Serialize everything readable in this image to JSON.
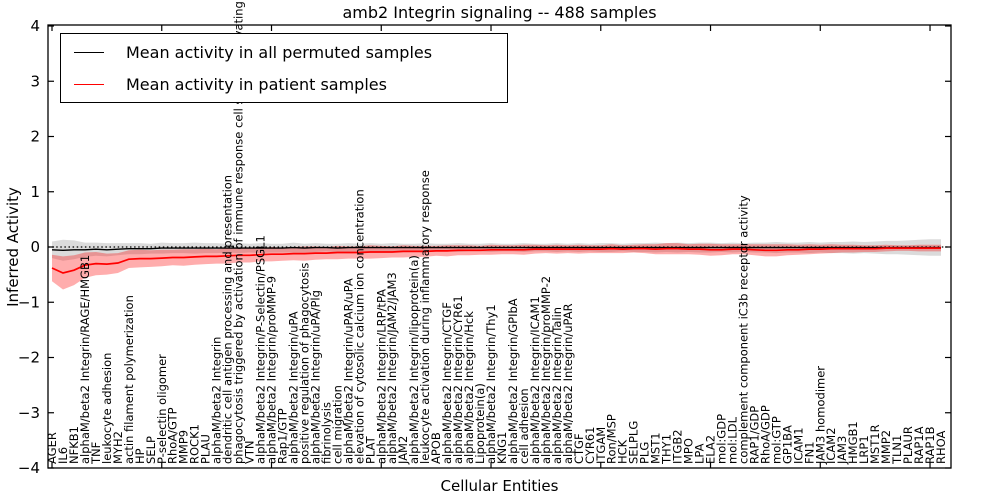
{
  "figure": {
    "title": "amb2 Integrin signaling -- 488 samples",
    "xlabel": "Cellular Entities",
    "ylabel": "Inferred Activity"
  },
  "legend": {
    "items": [
      {
        "label": "Mean activity in all permuted samples",
        "color": "#000000"
      },
      {
        "label": "Mean activity in patient samples",
        "color": "#ff0000"
      }
    ]
  },
  "chart_data": {
    "type": "line",
    "title": "amb2 Integrin signaling -- 488 samples",
    "xlabel": "Cellular Entities",
    "ylabel": "Inferred Activity",
    "ylim": [
      -4,
      4
    ],
    "yticks": [
      -4,
      -3,
      -2,
      -1,
      0,
      1,
      2,
      3,
      4
    ],
    "ytick_labels": [
      "−4",
      "−3",
      "−2",
      "−1",
      "0",
      "1",
      "2",
      "3",
      "4"
    ],
    "grid": false,
    "legend_position": "upper left",
    "zero_line": {
      "y": 0,
      "style": "dotted",
      "color": "#000000"
    },
    "categories": [
      "AGER",
      "IL6",
      "NFKB1",
      "alphaM/beta2 Integrin/RAGE/HMGB1",
      "TNF",
      "leukocyte adhesion",
      "MYH2",
      "actin filament polymerization",
      "HP",
      "SELP",
      "P-selectin oligomer",
      "RhoA/GTP",
      "MMP9",
      "ROCK1",
      "PLAU",
      "alphaM/beta2 Integrin",
      "dendritic cell antigen processing and presentation",
      "phagocytosis triggered by activation of immune response cell surface activating receptor",
      "VTN",
      "alphaM/beta2 Integrin/P-Selectin/PSGL1",
      "alphaM/beta2 Integrin/proMMP-9",
      "Rap1/GTP",
      "alphaM/beta2 Integrin/uPA",
      "positive regulation of phagocytosis",
      "alphaM/beta2 Integrin/uPA/Plg",
      "fibrinolysis",
      "cell migration",
      "alphaM/beta2 Integrin/uPAR/uPA",
      "elevation of cytosolic calcium ion concentration",
      "PLAT",
      "alphaM/beta2 Integrin/LRP/tPA",
      "alphaM/beta2 Integrin/JAM2/JAM3",
      "JAM2",
      "alphaM/beta2 Integrin/lipoprotein(a)",
      "leukocyte activation during inflammatory response",
      "APOB",
      "alphaM/beta2 Integrin/CTGF",
      "alphaM/beta2 Integrin/CYR61",
      "alphaM/beta2 Integrin/Hck",
      "Lipoprotein(a)",
      "alphaM/beta2 Integrin/Thy1",
      "KNG1",
      "alphaM/beta2 Integrin/GPIbA",
      "cell adhesion",
      "alphaM/beta2 Integrin/ICAM1",
      "alphaM/beta2 Integrin/proMMP-2",
      "alphaM/beta2 Integrin/Talin",
      "alphaM/beta2 Integrin/uPAR",
      "CTGF",
      "CYR61",
      "ITGAM",
      "Ron/MSP",
      "HCK",
      "SELPLG",
      "PLG",
      "MST1",
      "THY1",
      "ITGB2",
      "MPO",
      "LPA",
      "ELA2",
      "mol:GDP",
      "mol:LDL",
      "complement component iC3b receptor activity",
      "RAP1/GDP",
      "RhoA/GDP",
      "mol:GTP",
      "GP1BA",
      "ICAM1",
      "FN1",
      "JAM3 homodimer",
      "ICAM2",
      "JAM3",
      "HMGB1",
      "LRP1",
      "MST1R",
      "MMP2",
      "TLN1",
      "PLAUR",
      "RAP1A",
      "RAP1B",
      "RHOA"
    ],
    "series": [
      {
        "name": "Mean activity in all permuted samples",
        "color": "#000000",
        "band_color": "rgba(0,0,0,0.14)",
        "values": [
          -0.05,
          -0.06,
          -0.05,
          -0.05,
          -0.04,
          -0.05,
          -0.04,
          -0.03,
          -0.03,
          -0.03,
          -0.02,
          -0.02,
          -0.02,
          -0.02,
          -0.02,
          -0.02,
          -0.02,
          -0.02,
          -0.02,
          -0.02,
          -0.02,
          -0.02,
          -0.01,
          -0.02,
          -0.01,
          -0.01,
          -0.02,
          -0.01,
          -0.01,
          -0.01,
          -0.01,
          -0.01,
          -0.01,
          -0.01,
          -0.01,
          -0.01,
          -0.01,
          -0.01,
          -0.01,
          -0.01,
          -0.01,
          -0.01,
          -0.01,
          -0.01,
          -0.01,
          -0.01,
          -0.01,
          -0.01,
          -0.01,
          -0.01,
          -0.01,
          -0.01,
          -0.01,
          -0.01,
          -0.01,
          -0.01,
          -0.01,
          -0.01,
          -0.01,
          -0.01,
          -0.01,
          -0.01,
          -0.01,
          -0.01,
          -0.01,
          -0.01,
          -0.01,
          -0.01,
          -0.01,
          -0.01,
          -0.01,
          -0.01,
          -0.01,
          -0.01,
          -0.01,
          -0.01,
          -0.01,
          -0.01,
          -0.01,
          -0.01,
          -0.01,
          -0.01
        ],
        "band_halfwidth": [
          0.15,
          0.19,
          0.17,
          0.13,
          0.12,
          0.12,
          0.11,
          0.1,
          0.1,
          0.09,
          0.1,
          0.09,
          0.09,
          0.1,
          0.09,
          0.09,
          0.08,
          0.09,
          0.08,
          0.09,
          0.08,
          0.08,
          0.09,
          0.08,
          0.08,
          0.07,
          0.08,
          0.08,
          0.07,
          0.08,
          0.07,
          0.08,
          0.07,
          0.07,
          0.08,
          0.07,
          0.07,
          0.08,
          0.07,
          0.07,
          0.08,
          0.07,
          0.07,
          0.08,
          0.07,
          0.07,
          0.08,
          0.07,
          0.08,
          0.07,
          0.08,
          0.08,
          0.07,
          0.08,
          0.08,
          0.09,
          0.08,
          0.09,
          0.08,
          0.09,
          0.09,
          0.08,
          0.09,
          0.08,
          0.09,
          0.09,
          0.1,
          0.09,
          0.09,
          0.1,
          0.09,
          0.1,
          0.1,
          0.11,
          0.1,
          0.11,
          0.12,
          0.12,
          0.13,
          0.14,
          0.15,
          0.15
        ]
      },
      {
        "name": "Mean activity in patient samples",
        "color": "#ff0000",
        "band_color": "rgba(255,0,0,0.32)",
        "values": [
          -0.38,
          -0.47,
          -0.42,
          -0.33,
          -0.3,
          -0.31,
          -0.29,
          -0.22,
          -0.21,
          -0.21,
          -0.2,
          -0.19,
          -0.19,
          -0.18,
          -0.17,
          -0.17,
          -0.16,
          -0.15,
          -0.15,
          -0.14,
          -0.13,
          -0.13,
          -0.12,
          -0.12,
          -0.11,
          -0.11,
          -0.1,
          -0.1,
          -0.1,
          -0.09,
          -0.09,
          -0.09,
          -0.08,
          -0.08,
          -0.08,
          -0.07,
          -0.07,
          -0.06,
          -0.06,
          -0.06,
          -0.05,
          -0.05,
          -0.05,
          -0.05,
          -0.04,
          -0.04,
          -0.04,
          -0.04,
          -0.04,
          -0.04,
          -0.04,
          -0.03,
          -0.04,
          -0.03,
          -0.03,
          -0.04,
          -0.03,
          -0.03,
          -0.04,
          -0.04,
          -0.05,
          -0.05,
          -0.04,
          -0.04,
          -0.05,
          -0.06,
          -0.06,
          -0.05,
          -0.05,
          -0.04,
          -0.04,
          -0.03,
          -0.03,
          -0.03,
          -0.03,
          -0.03,
          -0.02,
          -0.02,
          -0.02,
          -0.02,
          -0.02,
          -0.02
        ],
        "band_halfwidth": [
          0.24,
          0.3,
          0.27,
          0.23,
          0.21,
          0.19,
          0.18,
          0.16,
          0.16,
          0.15,
          0.15,
          0.14,
          0.15,
          0.14,
          0.14,
          0.13,
          0.14,
          0.13,
          0.13,
          0.12,
          0.13,
          0.12,
          0.12,
          0.13,
          0.12,
          0.11,
          0.12,
          0.11,
          0.11,
          0.12,
          0.11,
          0.1,
          0.11,
          0.1,
          0.1,
          0.09,
          0.1,
          0.09,
          0.09,
          0.08,
          0.09,
          0.08,
          0.08,
          0.09,
          0.08,
          0.07,
          0.08,
          0.07,
          0.08,
          0.07,
          0.07,
          0.08,
          0.07,
          0.07,
          0.08,
          0.09,
          0.1,
          0.1,
          0.09,
          0.1,
          0.11,
          0.1,
          0.09,
          0.09,
          0.1,
          0.11,
          0.11,
          0.1,
          0.09,
          0.09,
          0.08,
          0.08,
          0.07,
          0.07,
          0.06,
          0.06,
          0.06,
          0.05,
          0.05,
          0.06,
          0.06,
          0.06
        ]
      }
    ]
  }
}
